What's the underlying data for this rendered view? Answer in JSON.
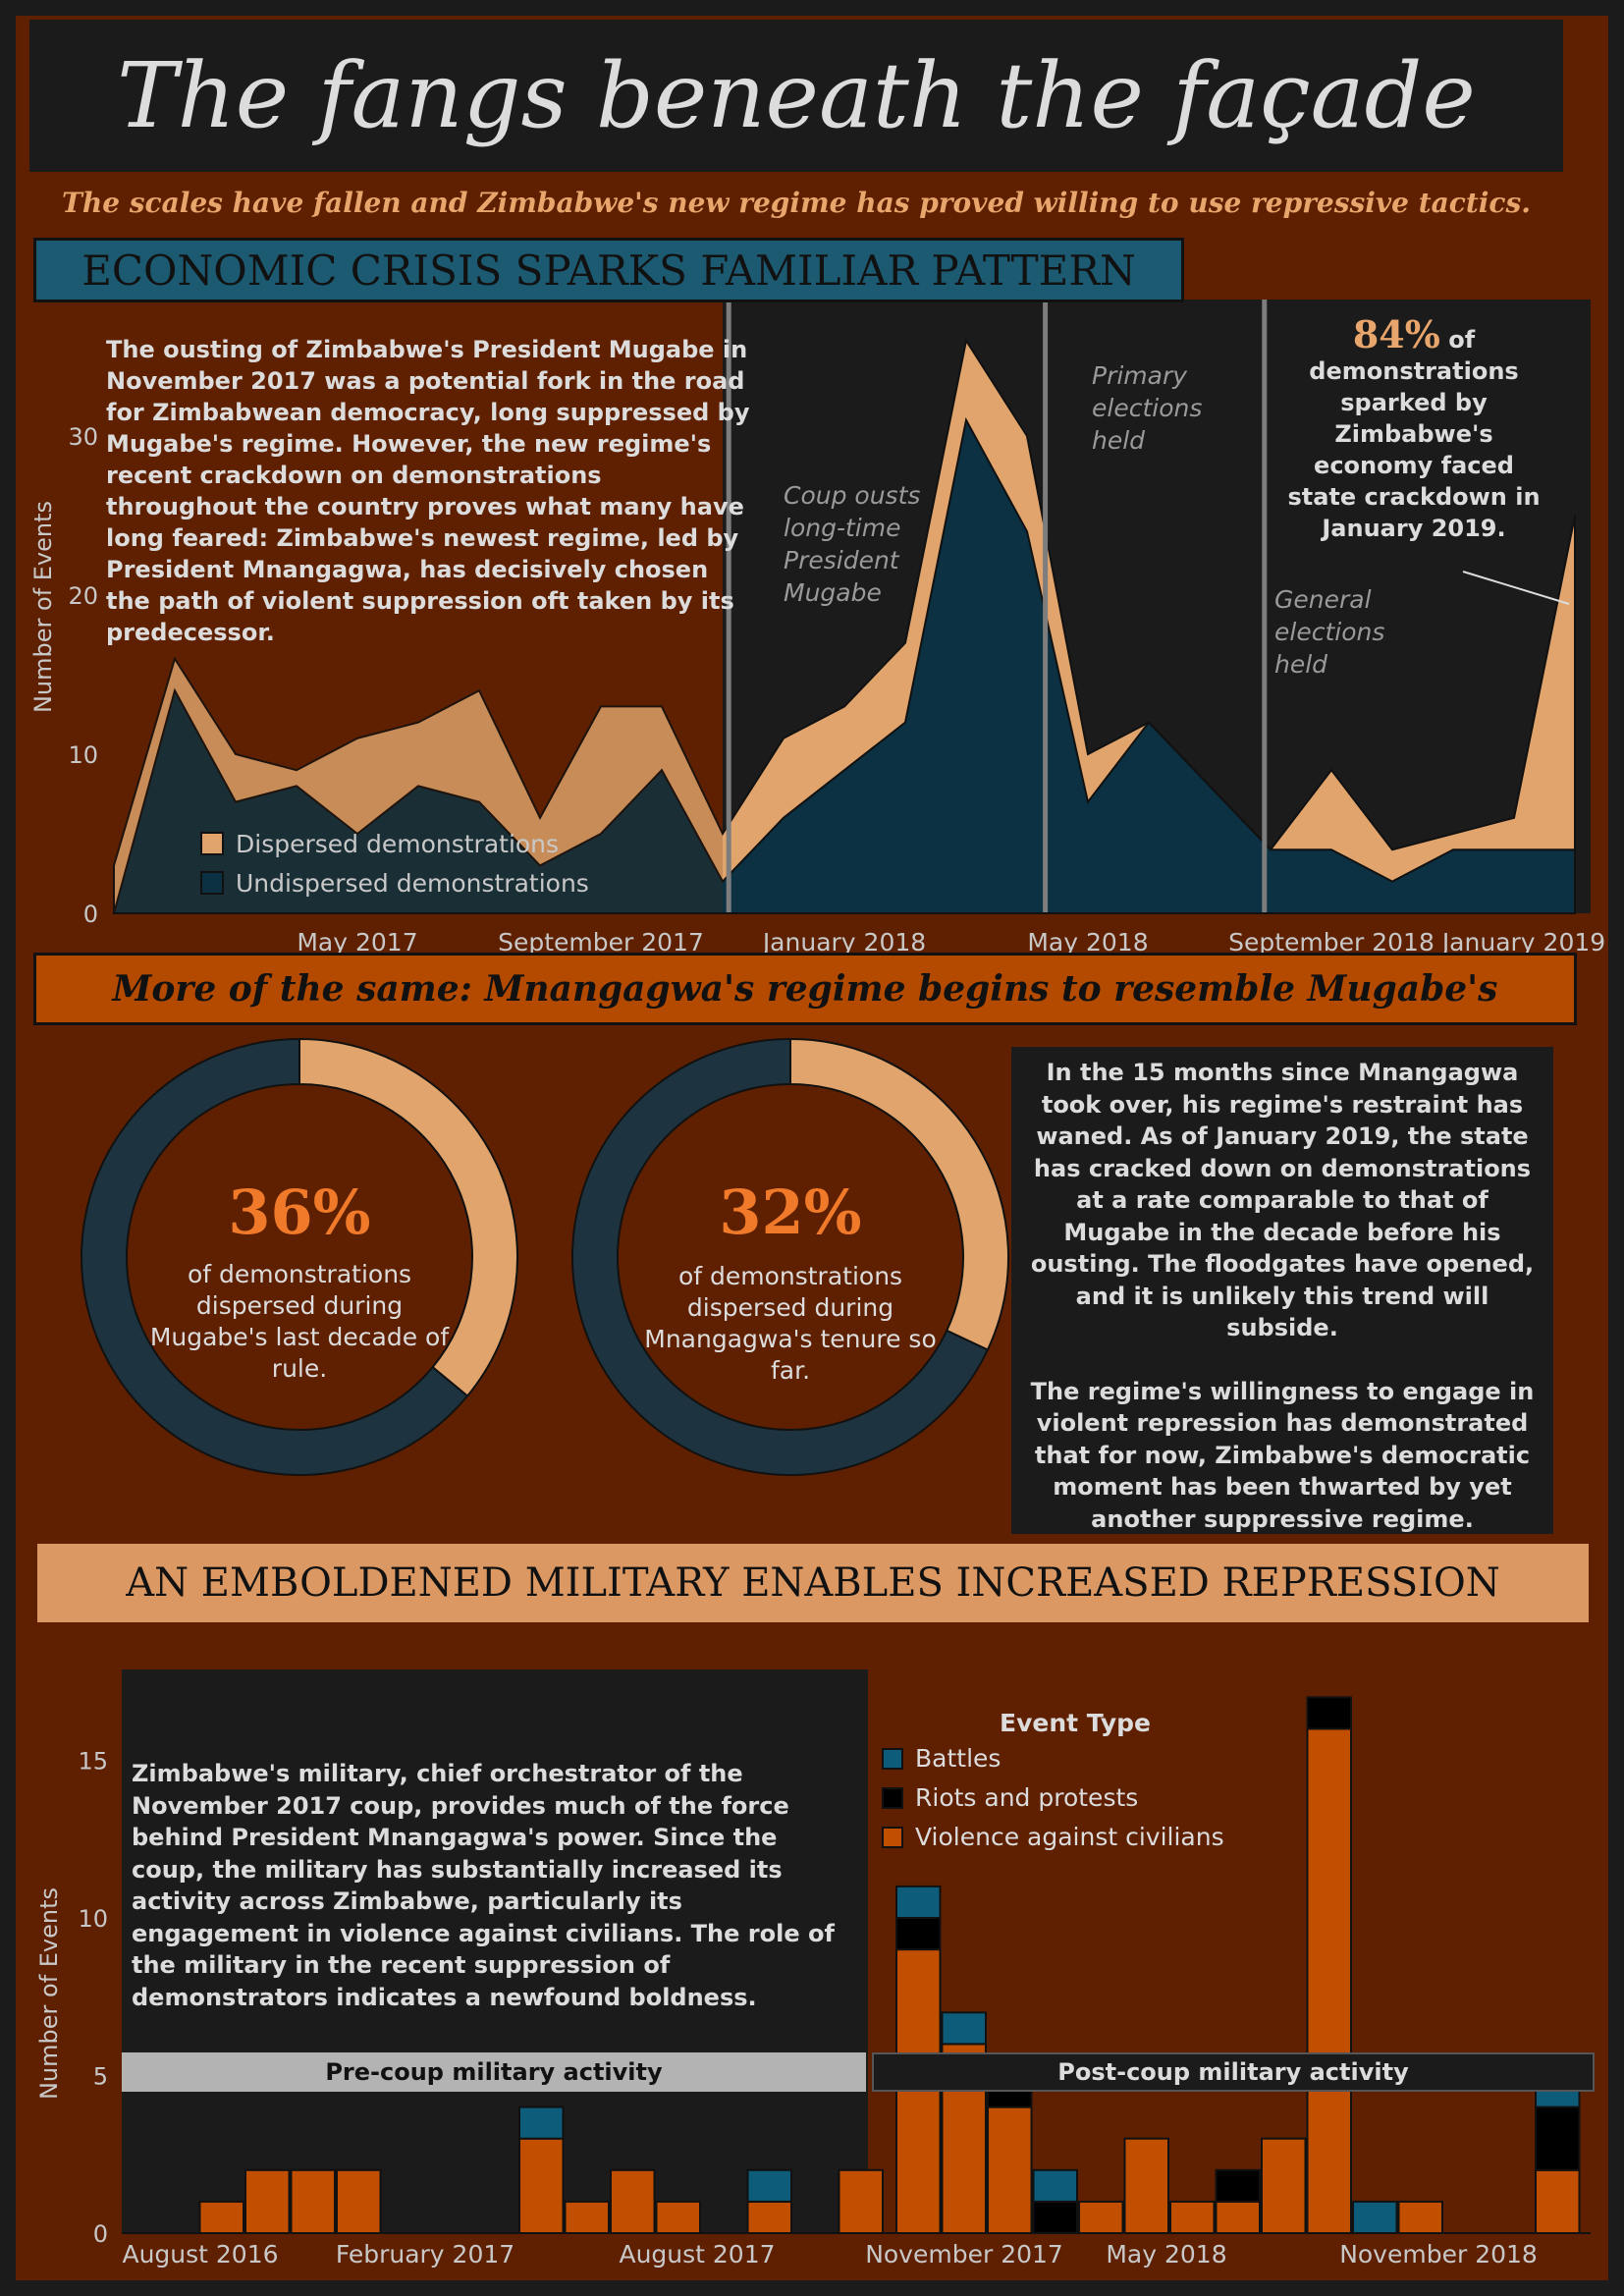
{
  "title": "The fangs beneath the façade",
  "subtitle": "The scales have fallen and Zimbabwe's new regime has proved willing to use repressive tactics.",
  "section1": {
    "heading": "ECONOMIC CRISIS SPARKS FAMILIAR PATTERN",
    "intro": "The ousting of Zimbabwe's President Mugabe in November 2017 was a potential fork in the road for Zimbabwean democracy, long suppressed by Mugabe's regime. However, the new regime's recent crackdown on demonstrations throughout the country proves what many have long feared: Zimbabwe's newest regime, led by President Mnangagwa, has decisively chosen the path of violent suppression oft taken by its predecessor.",
    "callout_pct": "84%",
    "callout_of": " of",
    "callout_text": "demonstrations sparked by Zimbabwe's economy faced state crackdown in January 2019.",
    "event_labels": {
      "coup": "Coup ousts long-time President Mugabe",
      "primary": "Primary elections held",
      "general": "General elections held"
    }
  },
  "section2": {
    "heading": "More of the same: Mnangagwa's regime begins to resemble Mugabe's",
    "donut1_pct": "36%",
    "donut1_text": "of demonstrations dispersed during Mugabe's last decade of rule.",
    "donut2_pct": "32%",
    "donut2_text": "of demonstrations dispersed during Mnangagwa's tenure so far.",
    "info_p1": "In the 15 months since Mnangagwa took over, his regime's restraint has waned. As of January 2019, the state has cracked down on demonstrations at a rate comparable to that of Mugabe in the decade before his ousting. The floodgates have opened, and it is unlikely this trend will subside.",
    "info_p2": "The regime's willingness to engage in violent repression has demonstrated that for now, Zimbabwe's democratic moment has been thwarted by yet another suppressive regime."
  },
  "section3": {
    "heading": "AN EMBOLDENED MILITARY ENABLES INCREASED REPRESSION",
    "pre_label": "Pre-coup military activity",
    "post_label": "Post-coup military activity",
    "text": "Zimbabwe's military, chief orchestrator of the November 2017 coup, provides much of the force behind President Mnangagwa's power. Since the coup, the military has substantially increased its activity across Zimbabwe, particularly its engagement in violence against civilians. The role of the military in the recent suppression of demonstrators indicates a newfound boldness.",
    "legend_title": "Event Type"
  },
  "colors": {
    "background": "#5e2000",
    "dark": "#1b1b1b",
    "dispersed": "#e0a46c",
    "undispersed": "#0b3142",
    "battles": "#0d5c7a",
    "riots": "#000000",
    "violence": "#c24f00"
  },
  "chart_data": [
    {
      "type": "area",
      "ylabel": "Number of Events",
      "ylim": [
        0,
        37
      ],
      "yticks": [
        0,
        10,
        20,
        30
      ],
      "x_tick_labels": [
        "May 2017",
        "September 2017",
        "January 2018",
        "May 2018",
        "September 2018",
        "January 2019"
      ],
      "months": [
        "Jan 2017",
        "Feb 2017",
        "Mar 2017",
        "Apr 2017",
        "May 2017",
        "Jun 2017",
        "Jul 2017",
        "Aug 2017",
        "Sep 2017",
        "Oct 2017",
        "Nov 2017",
        "Dec 2017",
        "Jan 2018",
        "Feb 2018",
        "Mar 2018",
        "Apr 2018",
        "May 2018",
        "Jun 2018",
        "Jul 2018",
        "Aug 2018",
        "Sep 2018",
        "Oct 2018",
        "Nov 2018",
        "Dec 2018",
        "Jan 2019"
      ],
      "series": [
        {
          "name": "Dispersed demonstrations",
          "values": [
            3,
            2,
            3,
            1,
            6,
            4,
            7,
            3,
            8,
            4,
            3,
            5,
            4,
            5,
            5,
            6,
            3,
            0,
            0,
            0,
            5,
            2,
            1,
            2,
            21
          ]
        },
        {
          "name": "Undispersed demonstrations",
          "values": [
            0,
            14,
            7,
            8,
            5,
            8,
            7,
            3,
            5,
            9,
            2,
            6,
            9,
            12,
            31,
            24,
            7,
            12,
            8,
            4,
            4,
            2,
            4,
            4,
            4
          ]
        }
      ],
      "annotations": [
        "Coup ousts long-time President Mugabe",
        "Primary elections held",
        "General elections held"
      ]
    },
    {
      "type": "pie",
      "values": [
        36,
        64
      ],
      "labels": [
        "Dispersed",
        "Undispersed"
      ]
    },
    {
      "type": "pie",
      "values": [
        32,
        68
      ],
      "labels": [
        "Dispersed",
        "Undispersed"
      ]
    },
    {
      "type": "bar",
      "stacked": true,
      "ylabel": "Number of Events",
      "ylim": [
        0,
        17.5
      ],
      "yticks": [
        0,
        5,
        10,
        15
      ],
      "x_tick_labels": [
        "August 2016",
        "February 2017",
        "August 2017",
        "November 2017",
        "May 2018",
        "November 2018"
      ],
      "pre_coup": {
        "months": [
          "Jul 2016",
          "Aug 2016",
          "Sep 2016",
          "Oct 2016",
          "Nov 2016",
          "Dec 2016",
          "Jan 2017",
          "Feb 2017",
          "Mar 2017",
          "Apr 2017",
          "May 2017",
          "Jun 2017",
          "Jul 2017",
          "Aug 2017",
          "Sep 2017",
          "Oct 2017"
        ],
        "series": [
          {
            "name": "Violence against civilians",
            "values": [
              0,
              1,
              2,
              2,
              2,
              0,
              0,
              0,
              3,
              1,
              2,
              1,
              0,
              1,
              0,
              2
            ]
          },
          {
            "name": "Riots and protests",
            "values": [
              0,
              0,
              0,
              0,
              0,
              0,
              0,
              0,
              0,
              0,
              0,
              0,
              0,
              0,
              0,
              0
            ]
          },
          {
            "name": "Battles",
            "values": [
              0,
              0,
              0,
              0,
              0,
              0,
              0,
              0,
              1,
              0,
              0,
              0,
              0,
              1,
              0,
              0
            ]
          }
        ]
      },
      "post_coup": {
        "months": [
          "Nov 2017",
          "Dec 2017",
          "Jan 2018",
          "Feb 2018",
          "Mar 2018",
          "Apr 2018",
          "May 2018",
          "Jun 2018",
          "Jul 2018",
          "Aug 2018",
          "Sep 2018",
          "Oct 2018",
          "Nov 2018",
          "Dec 2018",
          "Jan 2019"
        ],
        "series": [
          {
            "name": "Violence against civilians",
            "values": [
              9,
              6,
              4,
              0,
              1,
              3,
              1,
              1,
              3,
              16,
              0,
              1,
              0,
              0,
              2
            ]
          },
          {
            "name": "Riots and protests",
            "values": [
              1,
              0,
              1,
              1,
              0,
              0,
              0,
              1,
              0,
              1,
              0,
              0,
              0,
              0,
              2
            ]
          },
          {
            "name": "Battles",
            "values": [
              1,
              1,
              0,
              1,
              0,
              0,
              0,
              0,
              0,
              0,
              1,
              0,
              0,
              0,
              1
            ]
          }
        ]
      },
      "legend": [
        "Battles",
        "Riots and protests",
        "Violence against civilians"
      ]
    }
  ]
}
